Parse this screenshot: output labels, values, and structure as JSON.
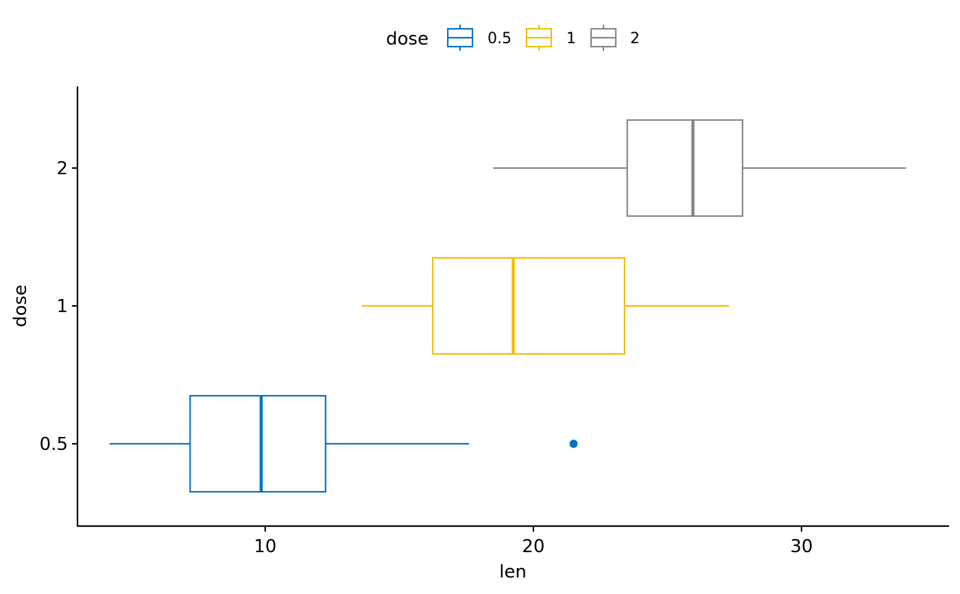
{
  "chart_data": {
    "type": "boxplot",
    "orientation": "horizontal",
    "xlabel": "len",
    "ylabel": "dose",
    "xlim": [
      3,
      35.5
    ],
    "xticks": [
      10,
      20,
      30
    ],
    "categories": [
      "0.5",
      "1",
      "2"
    ],
    "legend": {
      "title": "dose",
      "position": "top",
      "labels": [
        "0.5",
        "1",
        "2"
      ]
    },
    "grid": false,
    "series": [
      {
        "name": "0.5",
        "color": "#0073C2",
        "whisker_low": 4.2,
        "q1": 7.2,
        "median": 9.85,
        "q3": 12.25,
        "whisker_high": 17.6,
        "outliers": [
          21.5
        ]
      },
      {
        "name": "1",
        "color": "#EFC000",
        "whisker_low": 13.6,
        "q1": 16.25,
        "median": 19.25,
        "q3": 23.4,
        "whisker_high": 27.3,
        "outliers": []
      },
      {
        "name": "2",
        "color": "#868686",
        "whisker_low": 18.5,
        "q1": 23.5,
        "median": 25.95,
        "q3": 27.8,
        "whisker_high": 33.9,
        "outliers": []
      }
    ]
  }
}
